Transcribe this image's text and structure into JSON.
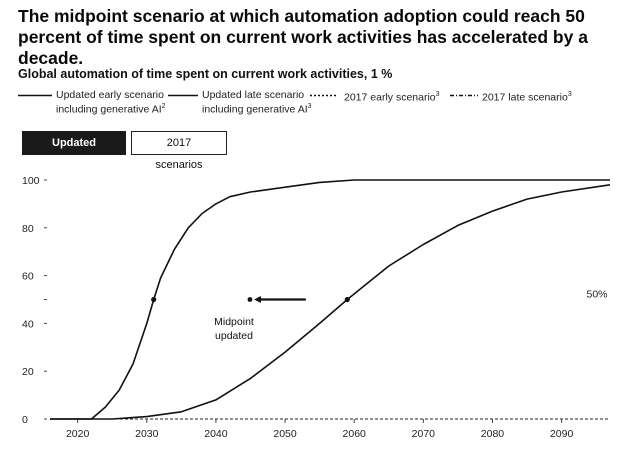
{
  "title": "The midpoint scenario at which automation adoption could reach 50 percent of time spent on current work activities has accelerated by a decade.",
  "chart_data": {
    "type": "line",
    "title": "Global automation of time spent on current work activities,",
    "title_suffix": "1 %",
    "xlim": [
      2016,
      2097
    ],
    "ylim": [
      0,
      100
    ],
    "x_ticks": [
      2020,
      2030,
      2040,
      2050,
      2060,
      2070,
      2080,
      2090
    ],
    "y_ticks": [
      0,
      20,
      40,
      60,
      80,
      100
    ],
    "grid": false,
    "legend_position": "top",
    "reference_line": {
      "y": 50,
      "label": "50%"
    },
    "series": [
      {
        "name_line1": "Updated early scenario",
        "name_line2": "including generative AI",
        "name_sup": "2",
        "style": "solid",
        "x": [
          2016,
          2022,
          2024,
          2026,
          2028,
          2030,
          2031,
          2032,
          2034,
          2036,
          2038,
          2040,
          2042,
          2045,
          2050,
          2055,
          2060,
          2070,
          2080,
          2090,
          2097
        ],
        "y": [
          0,
          0,
          5,
          12,
          23,
          40,
          50,
          59,
          71,
          80,
          86,
          90,
          93,
          95,
          97,
          99,
          100,
          100,
          100,
          100,
          100
        ],
        "midpoint": [
          2031,
          50
        ]
      },
      {
        "name_line1": "Updated late scenario",
        "name_line2": "including generative AI",
        "name_sup": "3",
        "style": "solid",
        "x": [
          2016,
          2025,
          2030,
          2035,
          2040,
          2045,
          2050,
          2055,
          2059,
          2062,
          2065,
          2070,
          2075,
          2080,
          2085,
          2090,
          2097
        ],
        "y": [
          0,
          0,
          1,
          3,
          8,
          17,
          28,
          40,
          50,
          57,
          64,
          73,
          81,
          87,
          92,
          95,
          98
        ],
        "midpoint": [
          2059,
          50
        ]
      },
      {
        "name_line1": "2017 early scenario",
        "name_sup": "3",
        "style": "dashed",
        "x": [],
        "y": []
      },
      {
        "name_line1": "2017 late scenario",
        "name_sup": "3",
        "style": "dashdot",
        "x": [],
        "y": []
      }
    ],
    "annotation": {
      "label_line1": "Midpoint",
      "label_line2": "updated",
      "arrow_from_x": 2053,
      "arrow_to_x": 2045.5,
      "y": 50
    }
  },
  "toggle": {
    "active_label": "Updated scenarios",
    "inactive_label": "2017 scenarios"
  },
  "colors": {
    "line": "#111111",
    "reference": "#888888"
  }
}
